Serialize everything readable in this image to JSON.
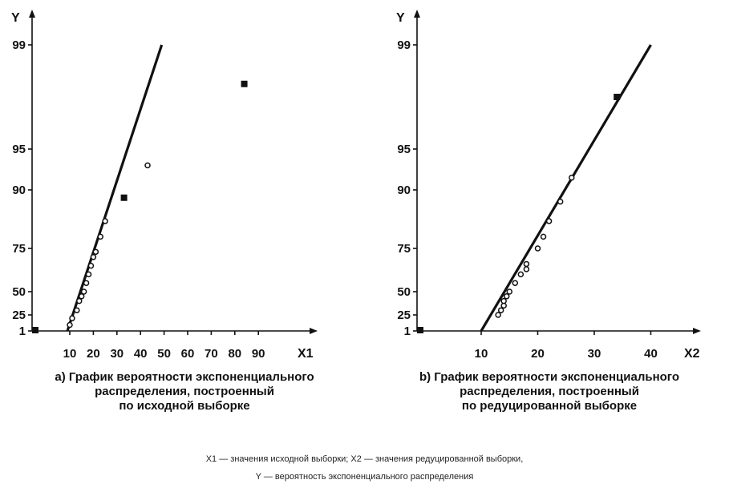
{
  "chart_data": [
    {
      "type": "scatter",
      "id": "a",
      "xlabel": "X1",
      "ylabel": "Y",
      "x_ticks": [
        "10",
        "20",
        "30",
        "40",
        "50",
        "60",
        "70",
        "80",
        "90"
      ],
      "y_ticks": [
        "1",
        "25",
        "50",
        "75",
        "90",
        "95",
        "99"
      ],
      "xlim": [
        0,
        100
      ],
      "series": [
        {
          "marker": "open-circle",
          "x": [
            10,
            11,
            13,
            14,
            15,
            16,
            17,
            18,
            19,
            20,
            21,
            23,
            25,
            43
          ],
          "y": [
            10,
            20,
            30,
            40,
            45,
            50,
            55,
            60,
            65,
            70,
            73,
            78,
            82,
            93
          ]
        },
        {
          "marker": "filled-square",
          "x": [
            0,
            33,
            84
          ],
          "y": [
            1,
            88,
            97.5
          ]
        }
      ],
      "fit_line": {
        "x": [
          9,
          49
        ],
        "y": [
          0,
          99
        ]
      }
    },
    {
      "type": "scatter",
      "id": "b",
      "xlabel": "X2",
      "ylabel": "Y",
      "x_ticks": [
        "10",
        "20",
        "30",
        "40"
      ],
      "y_ticks": [
        "1",
        "25",
        "50",
        "75",
        "90",
        "95",
        "99"
      ],
      "xlim": [
        0,
        45
      ],
      "series": [
        {
          "marker": "open-circle",
          "x": [
            13,
            13.5,
            14,
            14,
            14.5,
            15,
            16,
            17,
            18,
            18,
            20,
            21,
            22,
            24,
            26
          ],
          "y": [
            25,
            30,
            35,
            40,
            45,
            50,
            55,
            60,
            63,
            66,
            75,
            78,
            82,
            87,
            91.5
          ]
        },
        {
          "marker": "filled-square",
          "x": [
            0,
            34
          ],
          "y": [
            1,
            97
          ]
        }
      ],
      "fit_line": {
        "x": [
          10,
          40
        ],
        "y": [
          0,
          99
        ]
      }
    }
  ],
  "captions": {
    "a": [
      "a) График вероятности экспоненциального",
      "распределения, построенный",
      "по исходной выборке"
    ],
    "b": [
      "b) График вероятности экспоненциального",
      "распределения, построенный",
      "по редуцированной выборке"
    ]
  },
  "legend": {
    "line1": "X1 — значения исходной выборки; X2 — значения редуцированной выборки,",
    "line2": "Y — вероятность экспоненциального распределения"
  }
}
